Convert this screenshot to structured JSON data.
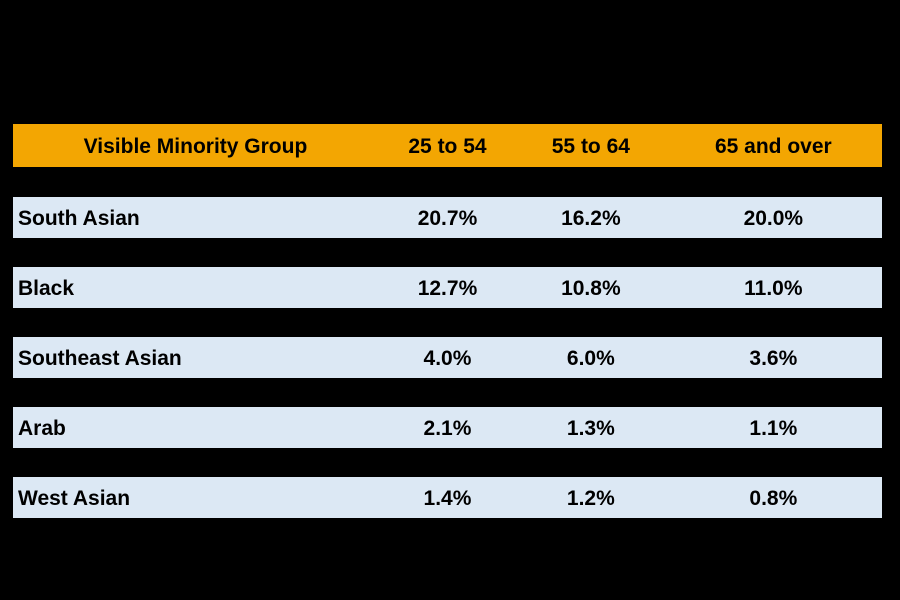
{
  "chart_data": {
    "type": "table",
    "title": "",
    "columns": [
      "Visible Minority Group",
      "25 to 54",
      "55 to 64",
      "65 and over"
    ],
    "rows": [
      {
        "group": "South Asian",
        "values": [
          "20.7%",
          "16.2%",
          "20.0%"
        ]
      },
      {
        "group": "Black",
        "values": [
          "12.7%",
          "10.8%",
          "11.0%"
        ]
      },
      {
        "group": "Southeast Asian",
        "values": [
          "4.0%",
          "6.0%",
          "3.6%"
        ]
      },
      {
        "group": "Arab",
        "values": [
          "2.1%",
          "1.3%",
          "1.1%"
        ]
      },
      {
        "group": "West Asian",
        "values": [
          "1.4%",
          "1.2%",
          "0.8%"
        ]
      }
    ],
    "layout": {
      "header_position": "top",
      "row_separation": "black gaps between rows",
      "value_alignment": "center",
      "group_alignment": "left"
    }
  },
  "colors": {
    "canvas_background": "#000000",
    "header_background": "#F3A602",
    "row_background": "#DCE8F4",
    "text": "#000000"
  }
}
